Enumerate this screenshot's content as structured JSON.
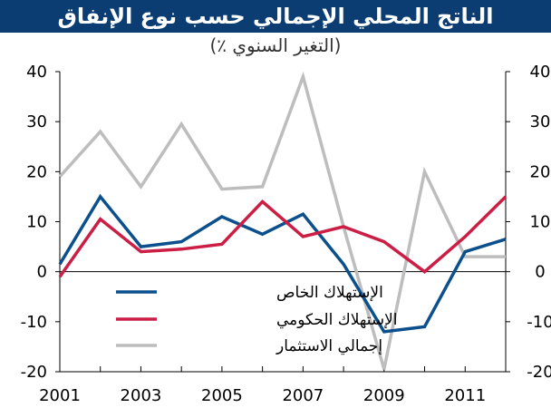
{
  "colors": {
    "title_bg": "#0b3d73",
    "private_consumption": "#0b4f8c",
    "government_consumption": "#cc1e45",
    "total_investment": "#bdbdbd"
  },
  "chart_data": {
    "type": "line",
    "title": "الناتج المحلي الإجمالي حسب نوع الإنفاق",
    "subtitle": "(التغير السنوي ٪)",
    "x": [
      2001,
      2002,
      2003,
      2004,
      2005,
      2006,
      2007,
      2008,
      2009,
      2010,
      2011,
      2012
    ],
    "x_tick_labels": [
      "2001",
      "2003",
      "2005",
      "2007",
      "2009",
      "2011"
    ],
    "x_tick_values": [
      2001,
      2003,
      2005,
      2007,
      2009,
      2011
    ],
    "ylim": [
      -20,
      40
    ],
    "y_ticks": [
      -20,
      -10,
      0,
      10,
      20,
      30,
      40
    ],
    "y_tick_labels": [
      "-20",
      "-10",
      "0",
      "10",
      "20",
      "30",
      "40"
    ],
    "dual_axis": true,
    "grid": false,
    "legend_position": "lower-left",
    "series": [
      {
        "name": "الإستهلاك الخاص",
        "color": "#0b4f8c",
        "values": [
          1.5,
          15,
          5,
          6,
          11,
          7.5,
          11.5,
          1.5,
          -12,
          -11,
          4,
          6.5
        ]
      },
      {
        "name": "الإستهلاك الحكومي",
        "color": "#cc1e45",
        "values": [
          -1,
          10.5,
          4,
          4.5,
          5.5,
          14,
          7,
          9,
          6,
          0,
          7,
          15
        ]
      },
      {
        "name": "إجمالي الاستثمار",
        "color": "#bdbdbd",
        "values": [
          19,
          28,
          17,
          29.5,
          16.5,
          17,
          39,
          9,
          -19.5,
          20,
          3,
          3
        ]
      }
    ]
  }
}
